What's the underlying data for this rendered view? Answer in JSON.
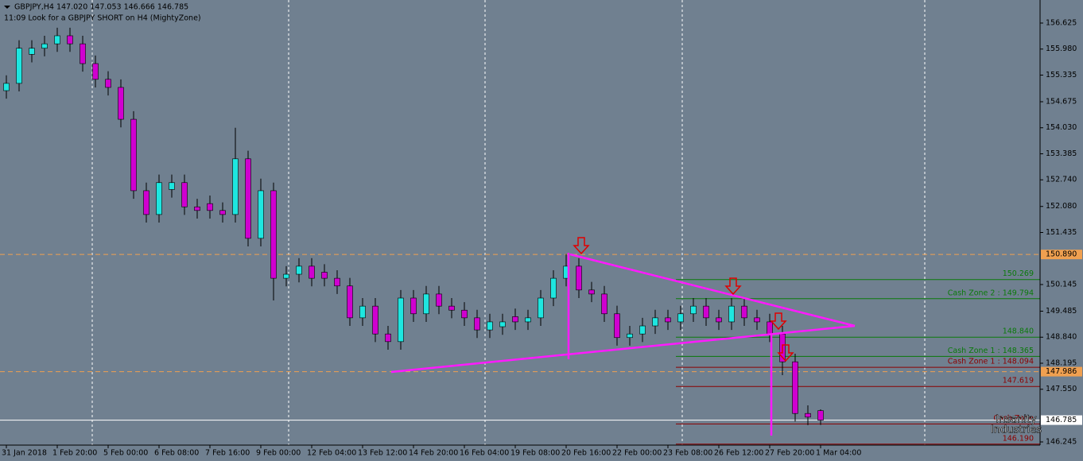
{
  "chart_data": {
    "type": "candlestick",
    "title": "GBPJPY,H4  147.020 147.053 146.666 146.785",
    "subtitle": "11:09 Look for a GBPJPY SHORT on H4 (MightyZone)",
    "watermark": [
      "Insanity",
      "Industries"
    ],
    "categories": [
      "31 Jan 2018",
      null,
      null,
      null,
      "1 Feb 20:00",
      null,
      null,
      null,
      "5 Feb 00:00",
      null,
      null,
      null,
      "6 Feb 08:00",
      null,
      null,
      null,
      "7 Feb 16:00",
      null,
      null,
      null,
      "9 Feb 00:00",
      null,
      null,
      null,
      "12 Feb 04:00",
      null,
      null,
      null,
      "13 Feb 12:00",
      null,
      null,
      null,
      "14 Feb 20:00",
      null,
      null,
      null,
      "16 Feb 04:00",
      null,
      null,
      null,
      "19 Feb 08:00",
      null,
      null,
      null,
      "20 Feb 16:00",
      null,
      null,
      null,
      "22 Feb 00:00",
      null,
      null,
      null,
      "23 Feb 08:00",
      null,
      null,
      null,
      "26 Feb 12:00",
      null,
      null,
      null,
      "27 Feb 20:00",
      null,
      null,
      null,
      "1 Mar 04:00"
    ],
    "open": [
      154.95,
      155.13,
      155.85,
      156.0,
      156.11,
      156.31,
      156.11,
      155.62,
      155.23,
      155.03,
      154.24,
      152.47,
      151.88,
      152.5,
      152.67,
      152.07,
      152.15,
      151.98,
      151.88,
      153.26,
      151.29,
      152.47,
      150.3,
      150.4,
      150.6,
      150.45,
      150.3,
      150.11,
      149.32,
      149.61,
      148.92,
      148.73,
      149.81,
      149.42,
      149.91,
      149.61,
      149.51,
      149.32,
      149.02,
      149.1,
      149.35,
      149.22,
      149.32,
      149.81,
      150.3,
      150.6,
      150.01,
      149.91,
      149.42,
      148.83,
      148.92,
      149.12,
      149.32,
      149.22,
      149.42,
      149.61,
      149.32,
      149.22,
      149.61,
      149.32,
      149.22,
      148.92,
      148.23,
      146.95,
      147.02
    ],
    "high": [
      155.33,
      156.2,
      156.2,
      156.31,
      156.51,
      156.51,
      156.31,
      155.82,
      155.43,
      155.23,
      154.44,
      152.67,
      152.87,
      152.87,
      152.87,
      152.27,
      152.35,
      152.18,
      154.03,
      153.46,
      152.77,
      152.67,
      150.6,
      150.8,
      150.8,
      150.65,
      150.5,
      150.31,
      149.81,
      149.81,
      149.12,
      150.01,
      150.01,
      150.11,
      150.11,
      149.81,
      149.71,
      149.52,
      149.42,
      149.42,
      149.55,
      149.52,
      150.01,
      150.5,
      150.9,
      150.8,
      150.21,
      150.11,
      149.62,
      149.12,
      149.32,
      149.52,
      149.52,
      149.62,
      149.81,
      149.81,
      149.52,
      149.81,
      149.81,
      149.52,
      149.42,
      149.12,
      148.43,
      147.15,
      147.053
    ],
    "low": [
      154.75,
      154.93,
      155.65,
      155.8,
      155.91,
      155.91,
      155.42,
      155.03,
      154.83,
      154.04,
      152.27,
      151.68,
      151.68,
      152.3,
      151.87,
      151.78,
      151.78,
      151.68,
      151.68,
      151.09,
      151.09,
      149.75,
      150.1,
      150.2,
      150.1,
      150.1,
      149.91,
      149.12,
      149.12,
      148.72,
      148.53,
      148.53,
      149.22,
      149.22,
      149.41,
      149.31,
      149.12,
      148.82,
      148.82,
      148.9,
      149.02,
      149.02,
      149.12,
      149.61,
      150.1,
      149.81,
      149.71,
      149.22,
      148.63,
      148.63,
      148.72,
      148.92,
      149.02,
      149.02,
      149.22,
      149.12,
      149.02,
      149.02,
      149.12,
      149.02,
      148.72,
      147.9,
      146.75,
      146.66,
      146.666
    ],
    "close": [
      155.13,
      156.0,
      156.0,
      156.11,
      156.31,
      156.11,
      155.62,
      155.23,
      155.03,
      154.24,
      152.47,
      151.88,
      152.67,
      152.67,
      152.07,
      151.98,
      151.98,
      151.88,
      153.26,
      151.29,
      152.47,
      150.3,
      150.4,
      150.6,
      150.3,
      150.3,
      150.11,
      149.32,
      149.61,
      148.92,
      148.73,
      149.81,
      149.42,
      149.91,
      149.61,
      149.51,
      149.32,
      149.02,
      149.22,
      149.22,
      149.22,
      149.32,
      149.81,
      150.3,
      150.6,
      150.01,
      149.91,
      149.42,
      148.83,
      148.92,
      149.12,
      149.32,
      149.22,
      149.42,
      149.61,
      149.32,
      149.22,
      149.61,
      149.32,
      149.22,
      148.92,
      148.23,
      146.95,
      146.86,
      146.785
    ],
    "colors": {
      "up": "#1ee6e0",
      "down": "#d000d0",
      "wick": "#000000"
    },
    "ylim": [
      146.166,
      157.196
    ],
    "yticks": [
      156.625,
      {
        "value": 155.98,
        "label": "155.980"
      },
      155.335,
      154.675,
      {
        "value": 154.03,
        "label": "154.030"
      },
      153.385,
      {
        "value": 152.74,
        "label": "152.740"
      },
      {
        "value": 152.08,
        "label": "152.080"
      },
      151.435,
      150.145,
      149.485,
      {
        "value": 148.84,
        "label": "148.840"
      },
      148.195,
      {
        "value": 147.55,
        "label": "147.550"
      },
      146.245
    ],
    "levels": [
      {
        "value": 150.269,
        "color": "#0a7a0a"
      },
      {
        "label": "Cash Zone 2 : 149.794",
        "value": 149.794,
        "color": "#0a7a0a"
      },
      {
        "label": "148.840",
        "value": 148.84,
        "color": "#0a7a0a"
      },
      {
        "label": "Cash Zone 1 : 148.365",
        "value": 148.365,
        "color": "#0a7a0a"
      },
      {
        "label": "Cash Zone 1 : 148.094",
        "value": 148.094,
        "color": "#8b0000"
      },
      {
        "value": 147.619,
        "color": "#8b0000"
      },
      {
        "label": "Cash Zone",
        "value": 146.69,
        "color": "#8b0000"
      },
      {
        "label": "146.190",
        "value": 146.19,
        "color": "#8b0000"
      }
    ],
    "marked_levels": [
      {
        "label": "150.890",
        "value": 150.89,
        "color": "#f0a050",
        "style": "dashed"
      },
      {
        "value": 147.986,
        "color": "#f0a050",
        "style": "dashed"
      },
      {
        "value": 146.785,
        "color": "#ffffff",
        "style": "solid"
      }
    ]
  }
}
